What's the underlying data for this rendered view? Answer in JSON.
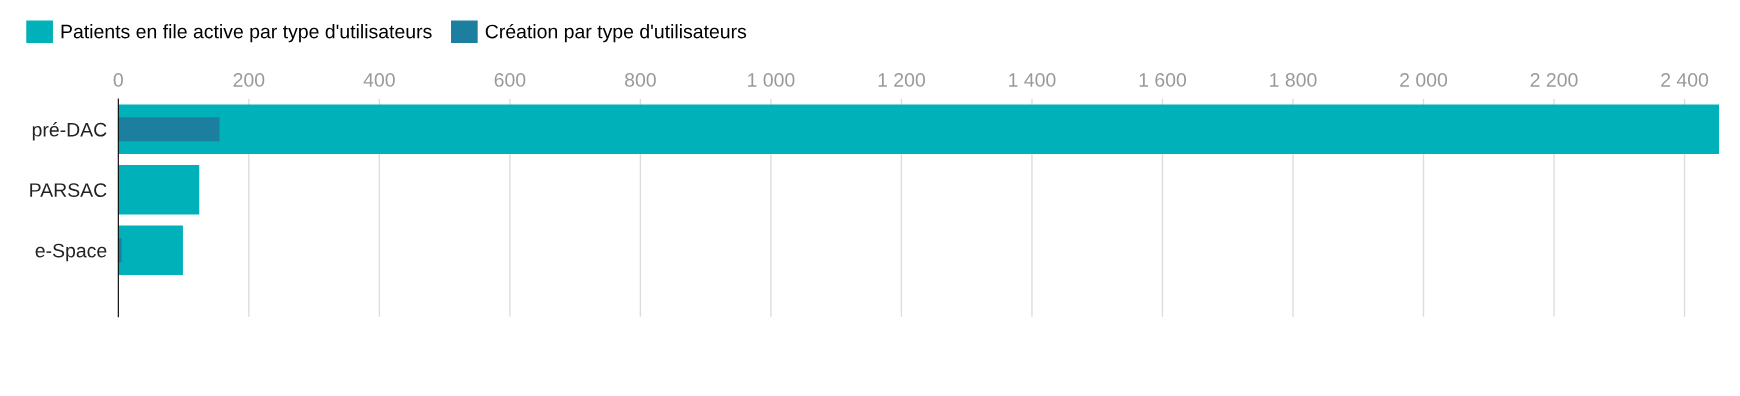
{
  "chart_data": {
    "type": "bar",
    "orientation": "horizontal",
    "categories": [
      "pré-DAC",
      "PARSAC",
      "e-Space"
    ],
    "series": [
      {
        "name": "Patients en file active par type d'utilisateurs",
        "color": "#00b1b9",
        "values": [
          2453,
          124,
          99
        ]
      },
      {
        "name": "Création par type d'utilisateurs",
        "color": "#1d7fa0",
        "values": [
          155,
          1,
          5
        ]
      }
    ],
    "xlim": [
      0,
      2453
    ],
    "xticks": [
      0,
      200,
      400,
      600,
      800,
      {
        "value": 1000,
        "label": "1 000"
      },
      {
        "value": 1200,
        "label": "1 200"
      },
      {
        "value": 1400,
        "label": "1 400"
      },
      {
        "value": 1600,
        "label": "1 600"
      },
      {
        "value": 1800,
        "label": "1 800"
      },
      {
        "value": 2000,
        "label": "2 000"
      },
      {
        "value": 2200,
        "label": "2 200"
      },
      {
        "value": 2400,
        "label": "2 400"
      }
    ],
    "grid": "x",
    "legend": "top left"
  }
}
